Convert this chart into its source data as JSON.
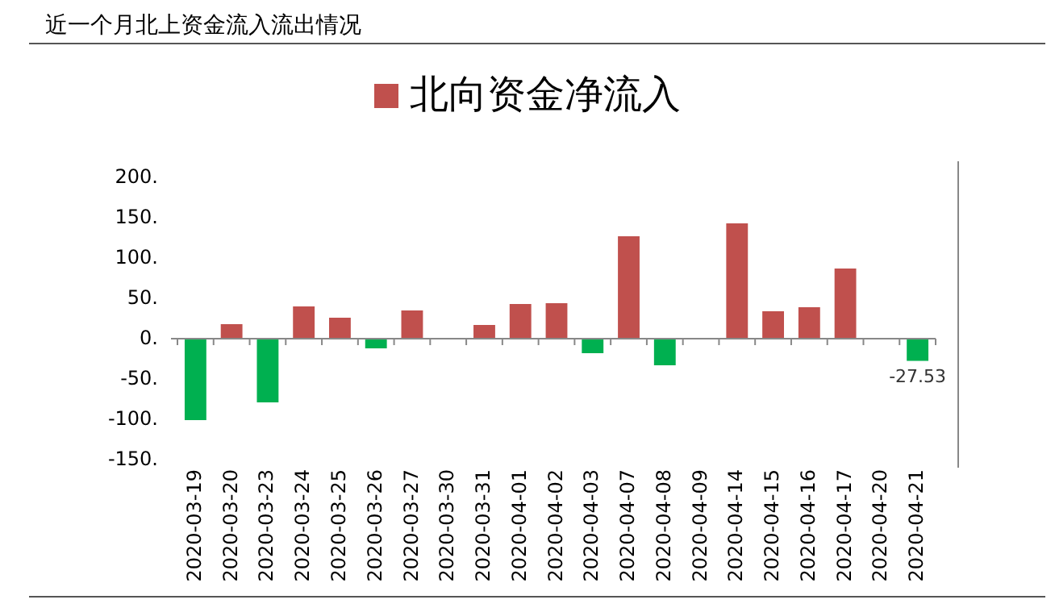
{
  "chart_data": {
    "type": "bar",
    "title": "近一个月北上资金流入流出情况",
    "categories": [
      "2020-03-19",
      "2020-03-20",
      "2020-03-23",
      "2020-03-24",
      "2020-03-25",
      "2020-03-26",
      "2020-03-27",
      "2020-03-30",
      "2020-03-31",
      "2020-04-01",
      "2020-04-02",
      "2020-04-03",
      "2020-04-07",
      "2020-04-08",
      "2020-04-09",
      "2020-04-14",
      "2020-04-15",
      "2020-04-16",
      "2020-04-17",
      "2020-04-20",
      "2020-04-21"
    ],
    "series": [
      {
        "name": "北向资金净流入",
        "color": "#c0504d",
        "colors": [
          "#00b050",
          "#c0504d",
          "#00b050",
          "#c0504d",
          "#c0504d",
          "#00b050",
          "#c0504d",
          "#c0504d",
          "#c0504d",
          "#c0504d",
          "#c0504d",
          "#00b050",
          "#c0504d",
          "#00b050",
          "#c0504d",
          "#c0504d",
          "#c0504d",
          "#c0504d",
          "#c0504d",
          "#c0504d",
          "#00b050"
        ],
        "values": [
          -101,
          18,
          -79,
          40,
          26,
          -12,
          35,
          0,
          17,
          43,
          44,
          -18,
          127,
          -33,
          0,
          143,
          34,
          39,
          87,
          0,
          -27.53
        ],
        "value_labels": [
          null,
          null,
          null,
          null,
          null,
          null,
          null,
          null,
          null,
          null,
          null,
          null,
          null,
          null,
          null,
          null,
          null,
          null,
          null,
          null,
          "-27.53"
        ]
      }
    ],
    "ylim": [
      -150,
      200
    ],
    "yticks": [
      {
        "value": -150,
        "label": "-150."
      },
      {
        "value": -100,
        "label": "-100."
      },
      {
        "value": -50,
        "label": "-50."
      },
      {
        "value": 0,
        "label": "0."
      },
      {
        "value": 50,
        "label": "50."
      },
      {
        "value": 100,
        "label": "100."
      },
      {
        "value": 150,
        "label": "150."
      },
      {
        "value": 200,
        "label": "200."
      }
    ],
    "legend": "top"
  }
}
